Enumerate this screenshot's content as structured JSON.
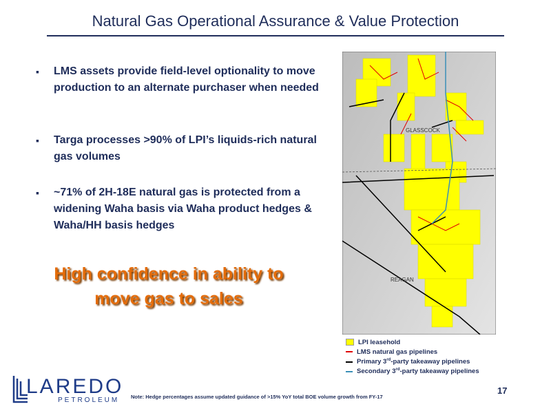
{
  "header": {
    "title": "Natural Gas Operational Assurance & Value Protection"
  },
  "bullets": [
    "LMS assets provide field-level optionality to move production to an alternate purchaser when needed",
    "Targa processes >90% of LPI’s liquids-rich natural gas volumes",
    "~71% of 2H-18E natural gas is protected from a widening Waha basis via Waha product hedges & Waha/HH basis hedges"
  ],
  "callout": [
    "High confidence in ability to",
    "move gas to sales"
  ],
  "map": {
    "labels": [
      "GLASSCOCK",
      "REAGAN"
    ],
    "legend": [
      {
        "text": "LPI leasehold"
      },
      {
        "text": "LMS natural gas pipelines"
      },
      {
        "before": "Primary 3",
        "sup": "rd",
        "after": "-party takeaway pipelines"
      },
      {
        "before": "Secondary 3",
        "sup": "rd",
        "after": "-party takeaway pipelines"
      }
    ]
  },
  "footer": {
    "note": "Note: Hedge percentages assume updated guidance of >15% YoY total BOE volume growth from FY-17",
    "page": "17",
    "logo": [
      "LAREDO",
      "PETROLEUM"
    ]
  }
}
